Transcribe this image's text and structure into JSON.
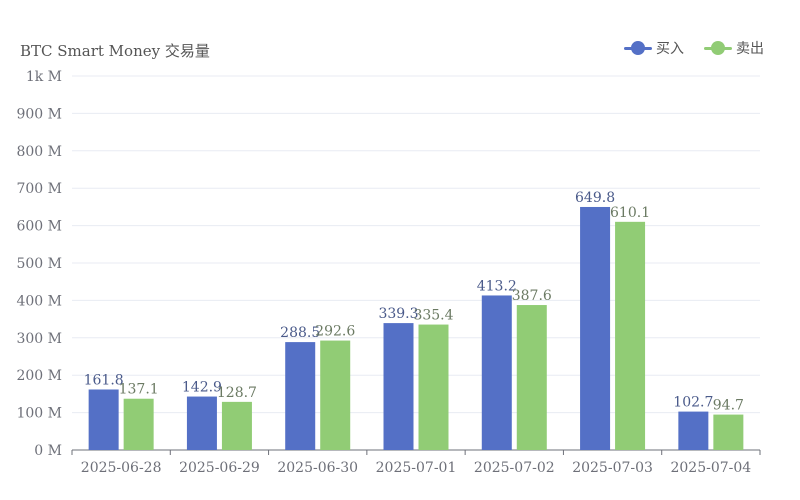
{
  "chart_data": {
    "type": "bar",
    "title": "BTC Smart Money 交易量",
    "categories": [
      "2025-06-28",
      "2025-06-29",
      "2025-06-30",
      "2025-07-01",
      "2025-07-02",
      "2025-07-03",
      "2025-07-04"
    ],
    "series": [
      {
        "name": "买入",
        "color": "#5470c6",
        "values": [
          161.8,
          142.9,
          288.5,
          339.3,
          413.2,
          649.8,
          102.7
        ],
        "labels": [
          "161.8",
          "142.9",
          "288.5",
          "339.3",
          "413.2",
          "649.8",
          "102.7"
        ]
      },
      {
        "name": "卖出",
        "color": "#91cc75",
        "values": [
          137.1,
          128.7,
          292.6,
          335.4,
          387.6,
          610.1,
          94.7
        ],
        "labels": [
          "137.1",
          "128.7",
          "292.6",
          "335.4",
          "387.6",
          "610.1",
          "94.7"
        ]
      }
    ],
    "yticks": [
      0,
      100,
      200,
      300,
      400,
      500,
      600,
      700,
      800,
      900,
      1000
    ],
    "ytick_labels": [
      "0 M",
      "100 M",
      "200 M",
      "300 M",
      "400 M",
      "500 M",
      "600 M",
      "700 M",
      "800 M",
      "900 M",
      "1k M"
    ],
    "ylim": [
      0,
      1000
    ],
    "grid": true,
    "legend_position": "top-right"
  }
}
